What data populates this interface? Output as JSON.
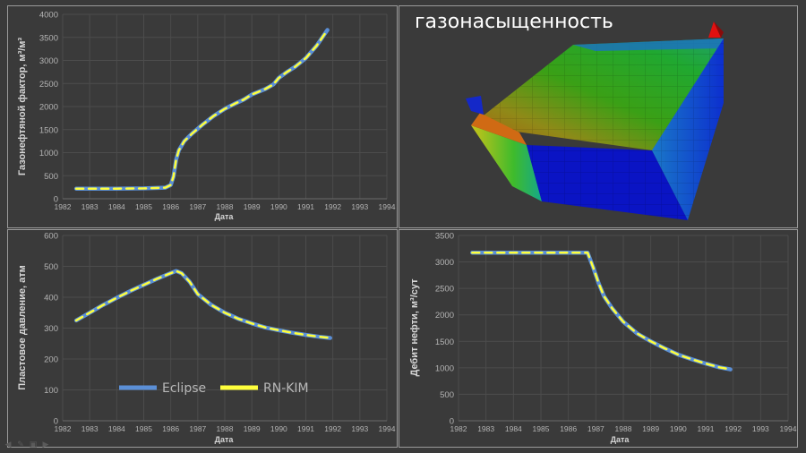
{
  "colors": {
    "background": "#3a3a3a",
    "panel_border": "#9a9a9a",
    "grid": "#4c4c4c",
    "axis_text": "#b4b4b4",
    "label_text": "#d6d6d6",
    "eclipse": "#5b8fd6",
    "rnkim": "#ffff3c"
  },
  "model_title": "газонасыщенность",
  "legend": {
    "eclipse": "Eclipse",
    "rnkim": "RN-KIM"
  },
  "nav_icons": [
    "prev-slide-icon",
    "pen-icon",
    "slides-grid-icon",
    "next-slide-icon"
  ],
  "chart_data": [
    {
      "type": "line",
      "id": "gor",
      "xlabel": "Дата",
      "ylabel": "Газонефтяной фактор, м³/м³",
      "xlim": [
        1982,
        1994
      ],
      "ylim": [
        0,
        4000
      ],
      "yticks": [
        0,
        500,
        1000,
        1500,
        2000,
        2500,
        3000,
        3500,
        4000
      ],
      "xticks": [
        1982,
        1983,
        1984,
        1985,
        1986,
        1987,
        1988,
        1989,
        1990,
        1991,
        1992,
        1993,
        1994
      ],
      "grid": true,
      "series": [
        {
          "name": "Eclipse",
          "x": [
            1982.5,
            1983,
            1984,
            1985,
            1985.8,
            1986.0,
            1986.1,
            1986.2,
            1986.3,
            1986.5,
            1986.8,
            1987.2,
            1987.6,
            1988.0,
            1988.4,
            1988.7,
            1989.0,
            1989.5,
            1989.8,
            1990.0,
            1990.3,
            1990.6,
            1991.0,
            1991.4,
            1991.8
          ],
          "y": [
            220,
            220,
            220,
            225,
            240,
            300,
            480,
            850,
            1050,
            1250,
            1420,
            1620,
            1800,
            1950,
            2070,
            2150,
            2260,
            2380,
            2480,
            2620,
            2750,
            2860,
            3050,
            3320,
            3660
          ]
        },
        {
          "name": "RN-KIM",
          "x": [
            1982.5,
            1983,
            1984,
            1985,
            1985.8,
            1986.0,
            1986.1,
            1986.2,
            1986.3,
            1986.5,
            1986.8,
            1987.2,
            1987.6,
            1988.0,
            1988.4,
            1988.7,
            1989.0,
            1989.5,
            1989.8,
            1990.0,
            1990.3,
            1990.6,
            1991.0,
            1991.4,
            1991.8
          ],
          "y": [
            220,
            220,
            220,
            225,
            240,
            300,
            480,
            850,
            1050,
            1250,
            1420,
            1620,
            1800,
            1950,
            2070,
            2150,
            2260,
            2380,
            2480,
            2620,
            2750,
            2860,
            3050,
            3320,
            3660
          ]
        }
      ]
    },
    {
      "type": "line",
      "id": "pressure",
      "xlabel": "Дата",
      "ylabel": "Пластовое давление, атм",
      "xlim": [
        1982,
        1994
      ],
      "ylim": [
        0,
        600
      ],
      "yticks": [
        0,
        100,
        200,
        300,
        400,
        500,
        600
      ],
      "xticks": [
        1982,
        1983,
        1984,
        1985,
        1986,
        1987,
        1988,
        1989,
        1990,
        1991,
        1992,
        1993,
        1994
      ],
      "grid": true,
      "legend_position": "bottom-left",
      "series": [
        {
          "name": "Eclipse",
          "x": [
            1982.5,
            1983,
            1983.5,
            1984,
            1984.5,
            1985,
            1985.5,
            1986.0,
            1986.2,
            1986.4,
            1986.7,
            1987.0,
            1987.5,
            1988.0,
            1988.5,
            1989.0,
            1989.5,
            1990.0,
            1990.5,
            1991.0,
            1991.5,
            1991.9
          ],
          "y": [
            325,
            350,
            375,
            398,
            420,
            440,
            460,
            478,
            485,
            478,
            450,
            410,
            375,
            350,
            330,
            315,
            302,
            293,
            285,
            278,
            272,
            268
          ]
        },
        {
          "name": "RN-KIM",
          "x": [
            1982.5,
            1983,
            1983.5,
            1984,
            1984.5,
            1985,
            1985.5,
            1986.0,
            1986.2,
            1986.4,
            1986.7,
            1987.0,
            1987.5,
            1988.0,
            1988.5,
            1989.0,
            1989.5,
            1990.0,
            1990.5,
            1991.0,
            1991.5,
            1991.9
          ],
          "y": [
            325,
            350,
            375,
            398,
            420,
            440,
            460,
            478,
            485,
            478,
            450,
            410,
            375,
            350,
            330,
            315,
            302,
            293,
            285,
            278,
            272,
            268
          ]
        }
      ]
    },
    {
      "type": "line",
      "id": "oilrate",
      "xlabel": "Дата",
      "ylabel": "Дебит нефти, м³/сут",
      "xlim": [
        1982,
        1994
      ],
      "ylim": [
        0,
        3500
      ],
      "yticks": [
        0,
        500,
        1000,
        1500,
        2000,
        2500,
        3000,
        3500
      ],
      "xticks": [
        1982,
        1983,
        1984,
        1985,
        1986,
        1987,
        1988,
        1989,
        1990,
        1991,
        1992,
        1993,
        1994
      ],
      "grid": true,
      "series": [
        {
          "name": "Eclipse",
          "x": [
            1982.5,
            1983,
            1984,
            1985,
            1986,
            1986.7,
            1986.9,
            1987.1,
            1987.3,
            1987.6,
            1988.0,
            1988.5,
            1989.0,
            1989.5,
            1990.0,
            1990.5,
            1991.0,
            1991.5,
            1991.9
          ],
          "y": [
            3175,
            3175,
            3175,
            3175,
            3175,
            3175,
            2900,
            2600,
            2350,
            2120,
            1870,
            1650,
            1500,
            1370,
            1250,
            1160,
            1080,
            1010,
            970
          ]
        },
        {
          "name": "RN-KIM",
          "x": [
            1982.5,
            1983,
            1984,
            1985,
            1986,
            1986.7,
            1986.9,
            1987.1,
            1987.3,
            1987.6,
            1988.0,
            1988.5,
            1989.0,
            1989.5,
            1990.0,
            1990.5,
            1991.0,
            1991.5,
            1991.9
          ],
          "y": [
            3175,
            3175,
            3175,
            3175,
            3175,
            3175,
            2900,
            2600,
            2350,
            2120,
            1870,
            1650,
            1500,
            1370,
            1250,
            1160,
            1080,
            1010,
            970
          ]
        }
      ]
    }
  ]
}
